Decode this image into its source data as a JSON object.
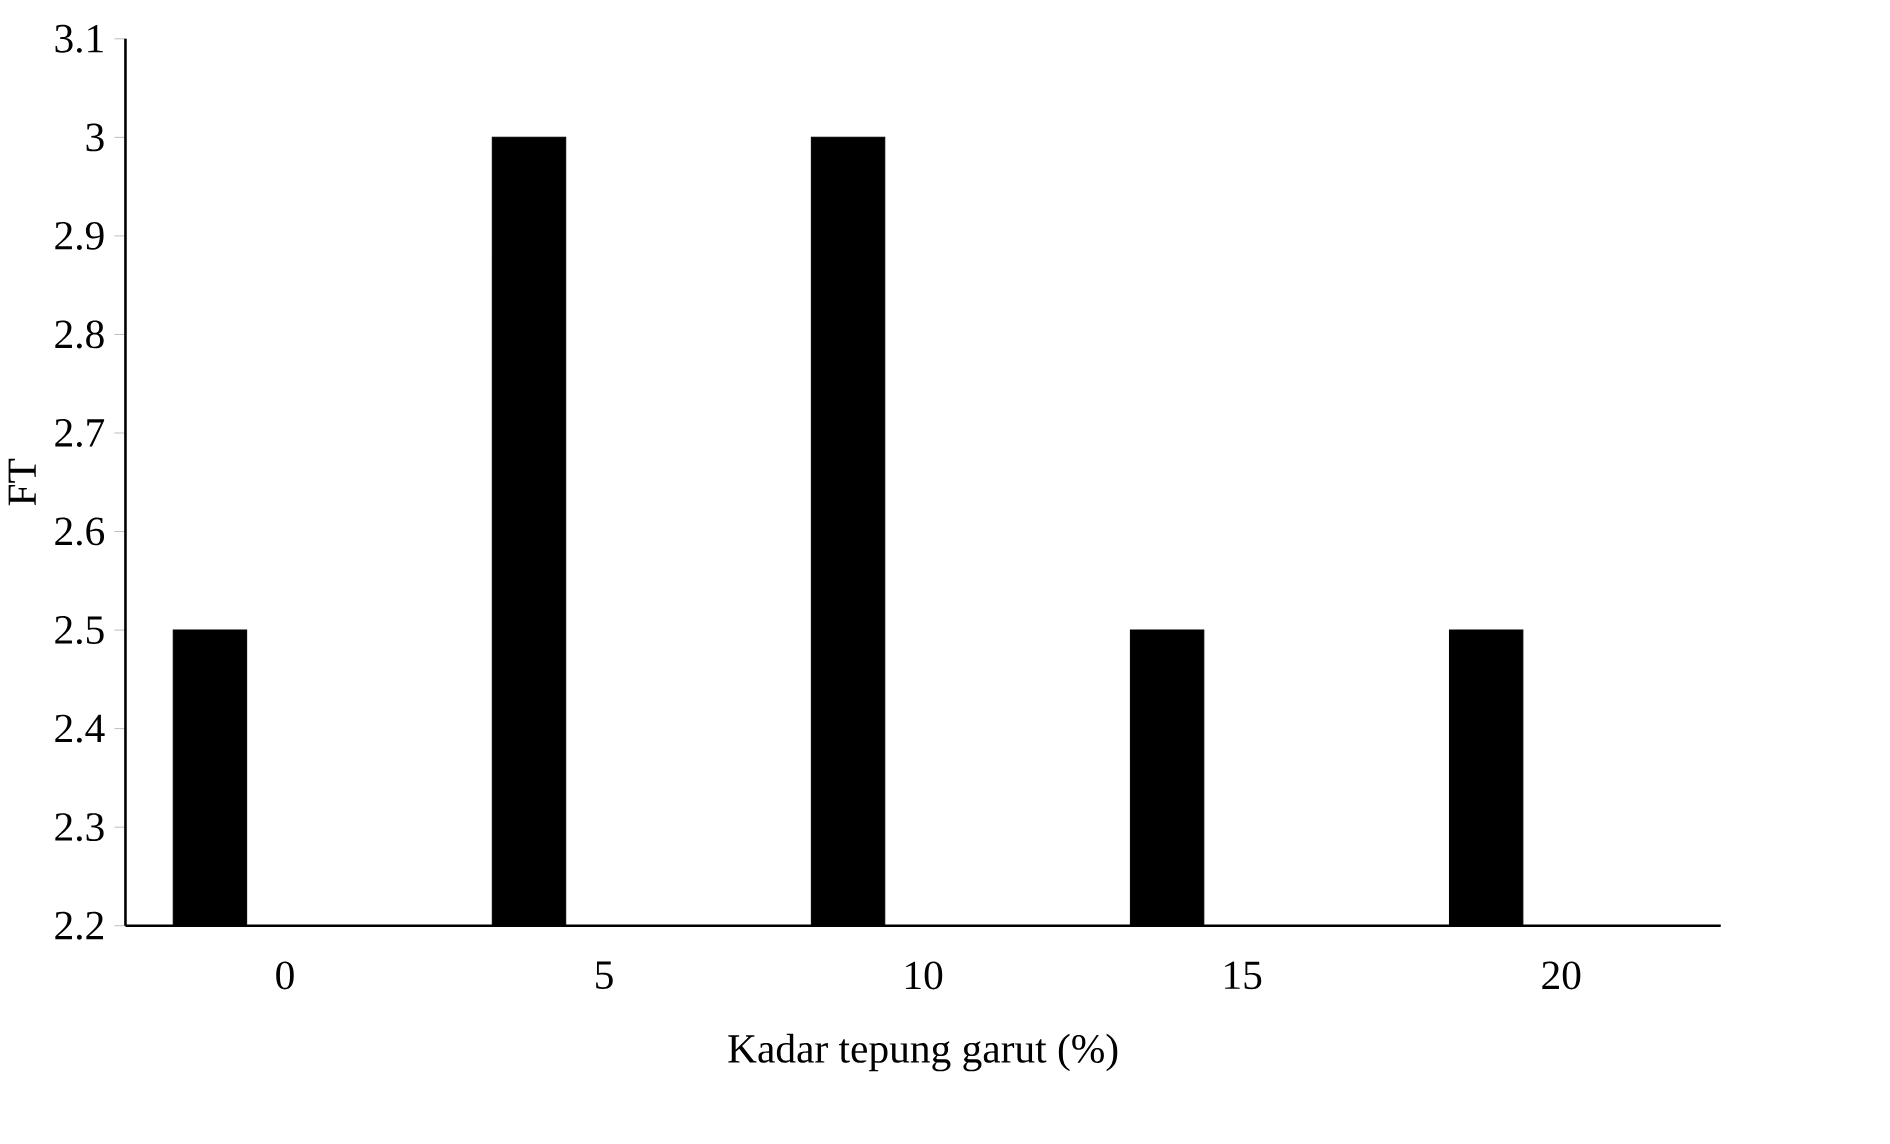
{
  "chart_data": {
    "type": "bar",
    "xlabel": "Kadar tepung garut (%)",
    "ylabel": "FT",
    "categories": [
      "0",
      "5",
      "10",
      "15",
      "20"
    ],
    "values": [
      2.5,
      3,
      3,
      2.5,
      2.5
    ],
    "color": "#000000",
    "ylim": [
      2.2,
      3.1
    ],
    "yticks": [
      2.2,
      2.3,
      2.4,
      2.5,
      2.6,
      2.7,
      2.8,
      2.9,
      3,
      3.1
    ]
  }
}
